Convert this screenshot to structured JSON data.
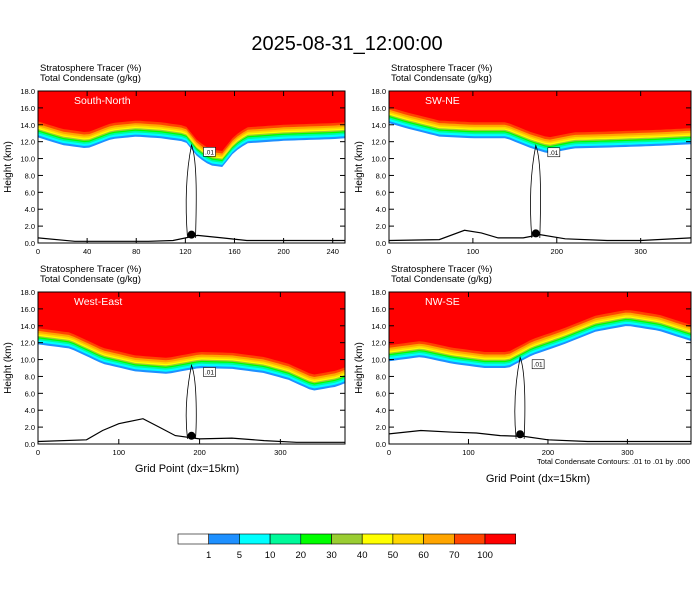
{
  "title": "2025-08-31_12:00:00",
  "panel_labels": {
    "field_line1_name": "Stratosphere Tracer",
    "field_line1_unit": "(%)",
    "field_line2_name": "Total Condensate",
    "field_line2_unit": "(g/kg)"
  },
  "axis_labels": {
    "ylabel": "Height (km)",
    "xlabel": "Grid Point (dx=15km)"
  },
  "footnote": "Total Condensate Contours: .01 to .01 by .000",
  "colors": {
    "c0": "#ffffff",
    "c1": "#1e90ff",
    "c5": "#00ffff",
    "c10": "#00fa9a",
    "c20": "#00ff00",
    "c30": "#9acd32",
    "c40": "#ffff00",
    "c50": "#ffd700",
    "c60": "#ffa500",
    "c70": "#ff4500",
    "c100": "#ff0000"
  },
  "colorbar": {
    "levels": [
      "1",
      "5",
      "10",
      "20",
      "30",
      "40",
      "50",
      "60",
      "70",
      "100"
    ]
  },
  "chart_data": [
    {
      "type": "heatmap",
      "label": "South-North",
      "xlim": [
        0,
        250
      ],
      "ylim": [
        0,
        18
      ],
      "xticks": [
        0,
        40,
        80,
        120,
        160,
        200,
        240
      ],
      "yticks": [
        0.0,
        2.0,
        4.0,
        6.0,
        8.0,
        10.0,
        12.0,
        14.0,
        16.0,
        18.0
      ],
      "tracer_base_km": [
        [
          0,
          12.5
        ],
        [
          20,
          11.6
        ],
        [
          40,
          11.2
        ],
        [
          60,
          12.3
        ],
        [
          80,
          12.6
        ],
        [
          100,
          12.4
        ],
        [
          120,
          12.0
        ],
        [
          130,
          10.2
        ],
        [
          140,
          9.2
        ],
        [
          150,
          9.0
        ],
        [
          160,
          10.8
        ],
        [
          170,
          11.8
        ],
        [
          200,
          12.1
        ],
        [
          240,
          12.3
        ],
        [
          250,
          12.4
        ]
      ],
      "terrain_km": [
        [
          0,
          0.6
        ],
        [
          30,
          0.2
        ],
        [
          60,
          0.2
        ],
        [
          90,
          0.2
        ],
        [
          110,
          0.3
        ],
        [
          130,
          0.9
        ],
        [
          150,
          0.6
        ],
        [
          170,
          0.3
        ],
        [
          210,
          0.3
        ],
        [
          250,
          0.3
        ]
      ],
      "marker_x": 125,
      "contour_label": ".01"
    },
    {
      "type": "heatmap",
      "label": "SW-NE",
      "xlim": [
        0,
        360
      ],
      "ylim": [
        0,
        18
      ],
      "xticks": [
        0,
        100,
        200,
        300
      ],
      "yticks": [
        0.0,
        2.0,
        4.0,
        6.0,
        8.0,
        10.0,
        12.0,
        14.0,
        16.0,
        18.0
      ],
      "tracer_base_km": [
        [
          0,
          14.2
        ],
        [
          20,
          13.6
        ],
        [
          60,
          12.6
        ],
        [
          100,
          12.4
        ],
        [
          140,
          12.4
        ],
        [
          170,
          11.2
        ],
        [
          190,
          10.6
        ],
        [
          220,
          11.2
        ],
        [
          260,
          11.3
        ],
        [
          320,
          11.5
        ],
        [
          360,
          11.7
        ]
      ],
      "terrain_km": [
        [
          0,
          0.3
        ],
        [
          60,
          0.4
        ],
        [
          90,
          1.5
        ],
        [
          110,
          1.2
        ],
        [
          130,
          0.6
        ],
        [
          160,
          0.6
        ],
        [
          180,
          1.0
        ],
        [
          210,
          0.5
        ],
        [
          260,
          0.3
        ],
        [
          300,
          0.3
        ],
        [
          360,
          0.6
        ]
      ],
      "marker_x": 175,
      "contour_label": ".01"
    },
    {
      "type": "heatmap",
      "label": "West-East",
      "xlim": [
        0,
        380
      ],
      "ylim": [
        0,
        18
      ],
      "xticks": [
        0,
        100,
        200,
        300
      ],
      "yticks": [
        0.0,
        2.0,
        4.0,
        6.0,
        8.0,
        10.0,
        12.0,
        14.0,
        16.0,
        18.0
      ],
      "tracer_base_km": [
        [
          0,
          11.8
        ],
        [
          40,
          11.3
        ],
        [
          80,
          9.5
        ],
        [
          120,
          8.6
        ],
        [
          160,
          8.3
        ],
        [
          200,
          9.0
        ],
        [
          240,
          8.9
        ],
        [
          280,
          8.4
        ],
        [
          310,
          7.6
        ],
        [
          340,
          6.3
        ],
        [
          370,
          6.8
        ],
        [
          380,
          7.2
        ]
      ],
      "terrain_km": [
        [
          0,
          0.3
        ],
        [
          60,
          0.5
        ],
        [
          80,
          1.6
        ],
        [
          100,
          2.4
        ],
        [
          130,
          3.0
        ],
        [
          150,
          2.0
        ],
        [
          170,
          1.0
        ],
        [
          200,
          0.6
        ],
        [
          240,
          0.7
        ],
        [
          280,
          0.4
        ],
        [
          320,
          0.2
        ],
        [
          380,
          0.2
        ]
      ],
      "marker_x": 190,
      "contour_label": ".01"
    },
    {
      "type": "heatmap",
      "label": "NW-SE",
      "xlim": [
        0,
        380
      ],
      "ylim": [
        0,
        18
      ],
      "xticks": [
        0,
        100,
        200,
        300
      ],
      "yticks": [
        0.0,
        2.0,
        4.0,
        6.0,
        8.0,
        10.0,
        12.0,
        14.0,
        16.0,
        18.0
      ],
      "tracer_base_km": [
        [
          0,
          9.8
        ],
        [
          40,
          10.3
        ],
        [
          80,
          9.5
        ],
        [
          120,
          9.0
        ],
        [
          150,
          9.0
        ],
        [
          180,
          10.5
        ],
        [
          220,
          11.8
        ],
        [
          260,
          13.3
        ],
        [
          300,
          14.0
        ],
        [
          340,
          13.4
        ],
        [
          380,
          12.2
        ]
      ],
      "terrain_km": [
        [
          0,
          1.2
        ],
        [
          40,
          1.6
        ],
        [
          80,
          1.4
        ],
        [
          110,
          1.3
        ],
        [
          140,
          1.0
        ],
        [
          170,
          0.9
        ],
        [
          200,
          0.5
        ],
        [
          250,
          0.3
        ],
        [
          320,
          0.3
        ],
        [
          380,
          0.3
        ]
      ],
      "marker_x": 165,
      "contour_label": ".01"
    }
  ]
}
